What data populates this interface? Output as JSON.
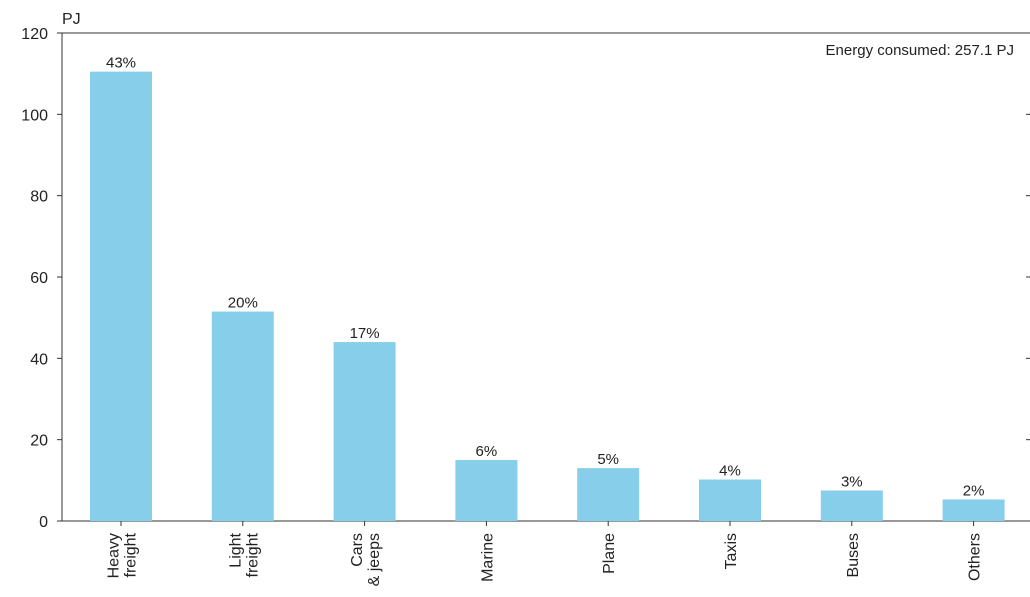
{
  "chart_data": {
    "type": "bar",
    "unit_label": "PJ",
    "annotation": "Energy consumed: 257.1 PJ",
    "categories": [
      [
        "Heavy",
        "freight"
      ],
      [
        "Light",
        "freight"
      ],
      [
        "Cars",
        "& jeeps"
      ],
      [
        "Marine"
      ],
      [
        "Plane"
      ],
      [
        "Taxis"
      ],
      [
        "Buses"
      ],
      [
        "Others"
      ]
    ],
    "values": [
      110.5,
      51.5,
      44,
      15,
      13,
      10.2,
      7.5,
      5.3
    ],
    "data_labels": [
      "43%",
      "20%",
      "17%",
      "6%",
      "5%",
      "4%",
      "3%",
      "2%"
    ],
    "ylim": [
      0,
      120
    ],
    "yticks": [
      0,
      20,
      40,
      60,
      80,
      100,
      120
    ],
    "grid": false,
    "bar_color": "#87ceeb"
  }
}
